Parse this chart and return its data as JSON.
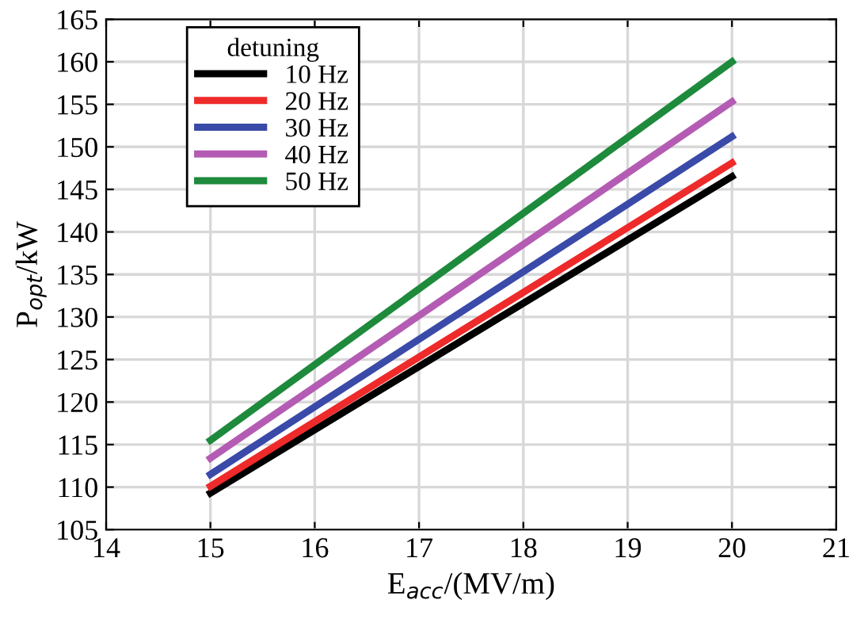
{
  "chart_data": {
    "type": "line",
    "xlabel": "E$_{acc}$/(MV/m)",
    "ylabel": "P$_{opt}$/kW",
    "legend_title": "detuning",
    "x": [
      15,
      20
    ],
    "series": [
      {
        "name": "10 Hz",
        "color": "#000000",
        "values": [
          109.3,
          146.5
        ]
      },
      {
        "name": "20 Hz",
        "color": "#ee2a2a",
        "values": [
          110.1,
          148.1
        ]
      },
      {
        "name": "30 Hz",
        "color": "#3a4aa8",
        "values": [
          111.5,
          151.2
        ]
      },
      {
        "name": "40 Hz",
        "color": "#b45cb4",
        "values": [
          113.4,
          155.3
        ]
      },
      {
        "name": "50 Hz",
        "color": "#1e8a3c",
        "values": [
          115.5,
          160
        ]
      }
    ],
    "xlim": [
      14,
      21
    ],
    "xticks": [
      14,
      15,
      16,
      17,
      18,
      19,
      20,
      21
    ],
    "ylim": [
      105,
      165
    ],
    "yticks": [
      105,
      110,
      115,
      120,
      125,
      130,
      135,
      140,
      145,
      150,
      155,
      160,
      165
    ],
    "grid": true,
    "legend": "top left",
    "marker": "none",
    "line_style": "solid"
  }
}
